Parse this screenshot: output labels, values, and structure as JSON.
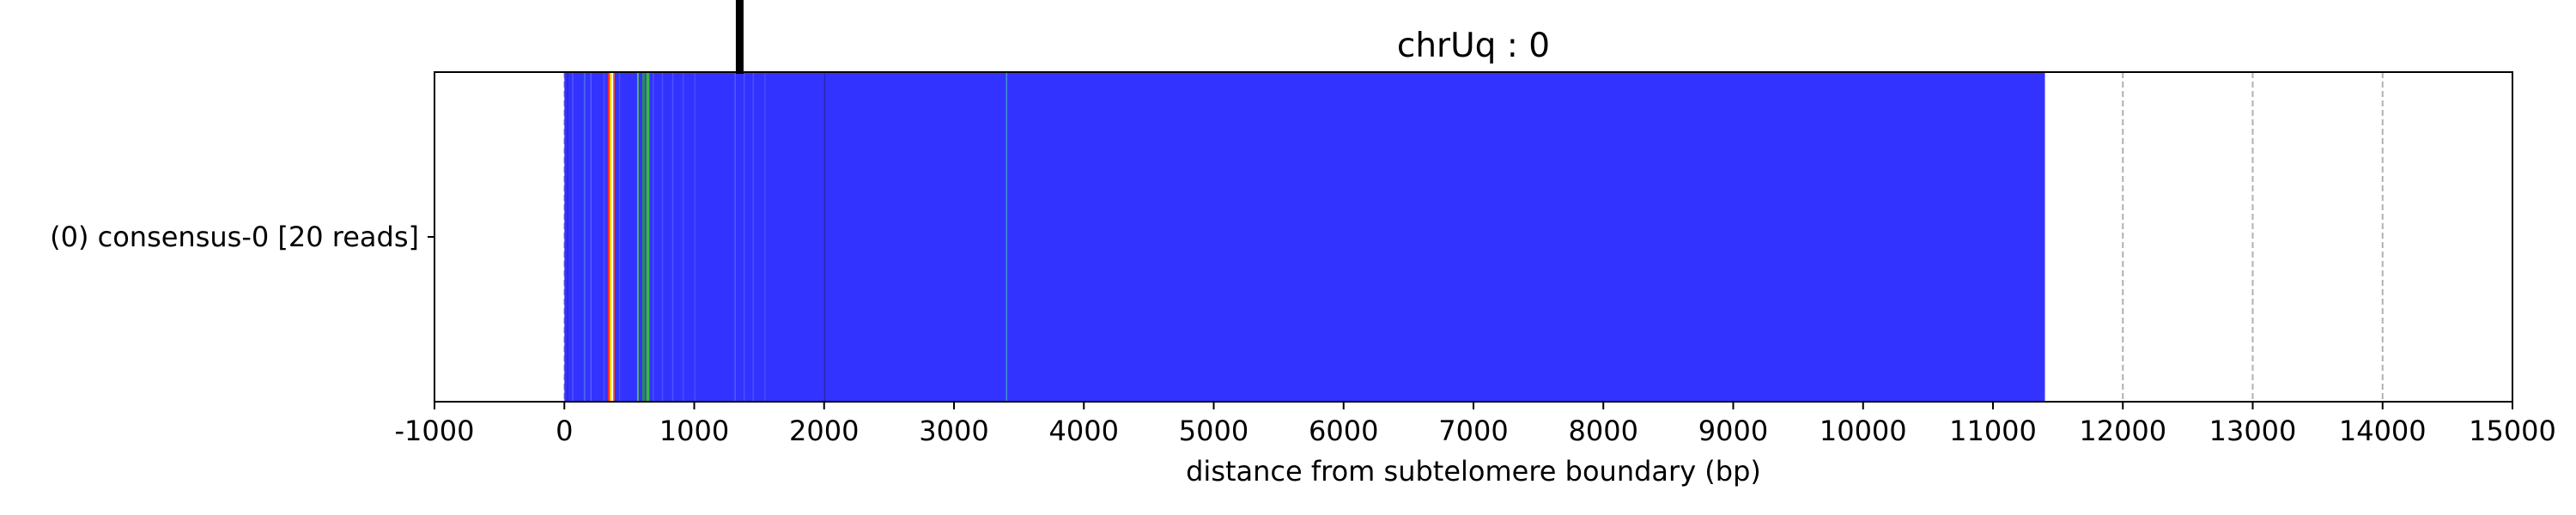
{
  "chart_data": {
    "type": "heatmap",
    "title": "chrUq : 0",
    "xlabel": "distance from subtelomere boundary (bp)",
    "ylabel": "",
    "xlim": [
      -1000,
      15000
    ],
    "xticks": [
      -1000,
      0,
      1000,
      2000,
      3000,
      4000,
      5000,
      6000,
      7000,
      8000,
      9000,
      10000,
      11000,
      12000,
      13000,
      14000,
      15000
    ],
    "grid": "vertical dashed",
    "rows": [
      {
        "label": "(0) consensus-0 [20 reads]",
        "x_start": 0,
        "x_end": 11400,
        "base_color": "#3333ff",
        "bands": [
          {
            "x": 20,
            "width": 10,
            "color": "#2a2ad0"
          },
          {
            "x": 60,
            "width": 8,
            "color": "#5555ff"
          },
          {
            "x": 150,
            "width": 12,
            "color": "#4466ee"
          },
          {
            "x": 200,
            "width": 8,
            "color": "#5a5aff"
          },
          {
            "x": 300,
            "width": 12,
            "color": "#4a4aff"
          },
          {
            "x": 335,
            "width": 15,
            "color": "#ff2d2d"
          },
          {
            "x": 350,
            "width": 15,
            "color": "#ffe600"
          },
          {
            "x": 365,
            "width": 12,
            "color": "#ffffff"
          },
          {
            "x": 377,
            "width": 10,
            "color": "#ff5500"
          },
          {
            "x": 420,
            "width": 10,
            "color": "#4b4bff"
          },
          {
            "x": 560,
            "width": 12,
            "color": "#55c855"
          },
          {
            "x": 600,
            "width": 20,
            "color": "#2e8b57"
          },
          {
            "x": 630,
            "width": 25,
            "color": "#3ab83a"
          },
          {
            "x": 680,
            "width": 10,
            "color": "#4d4dff"
          },
          {
            "x": 750,
            "width": 8,
            "color": "#4f4fff"
          },
          {
            "x": 830,
            "width": 8,
            "color": "#5050ff"
          },
          {
            "x": 910,
            "width": 8,
            "color": "#4c4cff"
          },
          {
            "x": 1000,
            "width": 8,
            "color": "#4a4aff"
          },
          {
            "x": 1310,
            "width": 10,
            "color": "#5555ff"
          },
          {
            "x": 1380,
            "width": 10,
            "color": "#4d4dff"
          },
          {
            "x": 1450,
            "width": 10,
            "color": "#5050ff"
          },
          {
            "x": 1540,
            "width": 8,
            "color": "#4a4aff"
          },
          {
            "x": 2000,
            "width": 10,
            "color": "#2a2aaa"
          },
          {
            "x": 3400,
            "width": 10,
            "color": "#4090d0"
          }
        ]
      }
    ],
    "marker": {
      "x": 1350,
      "color": "#000000"
    }
  }
}
